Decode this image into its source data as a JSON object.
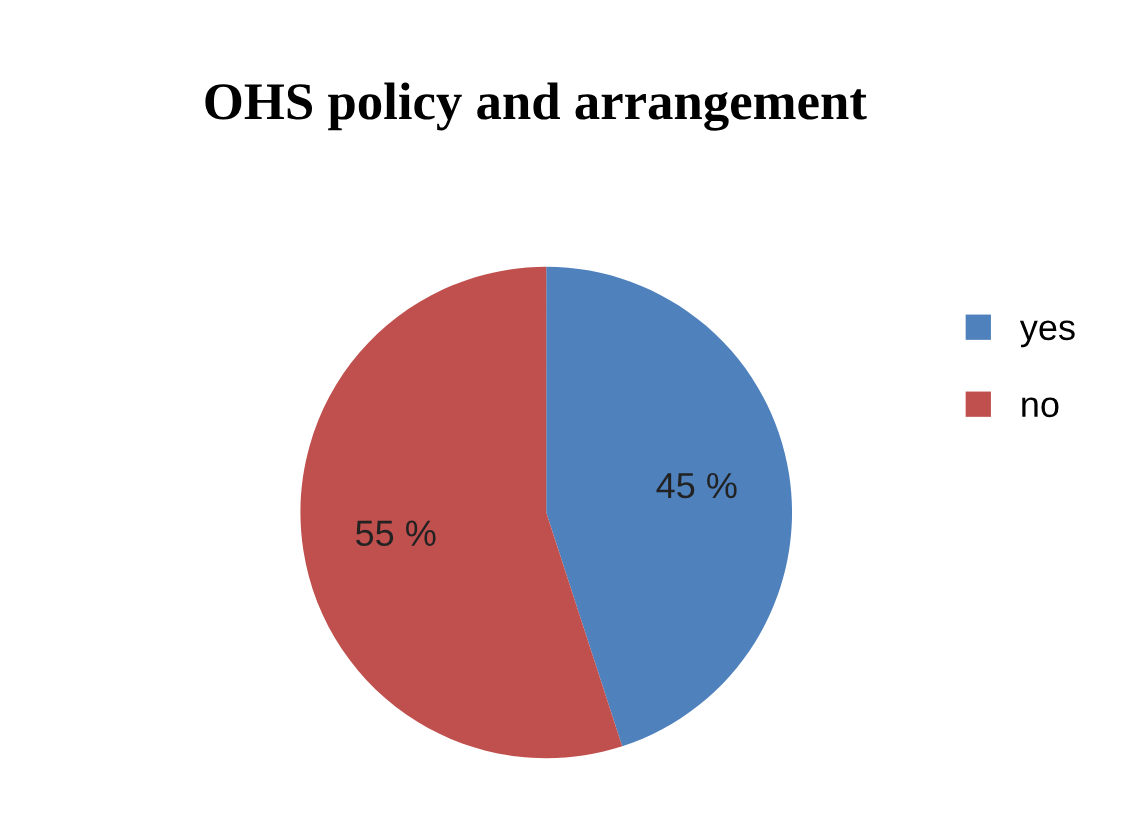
{
  "chart_data": {
    "type": "pie",
    "title": "OHS policy and arrangement",
    "categories": [
      "yes",
      "no"
    ],
    "values": [
      45,
      55
    ],
    "colors": [
      "#4f81bd",
      "#c0504d"
    ],
    "value_labels": [
      "45 %",
      "55 %"
    ],
    "legend": "right"
  }
}
